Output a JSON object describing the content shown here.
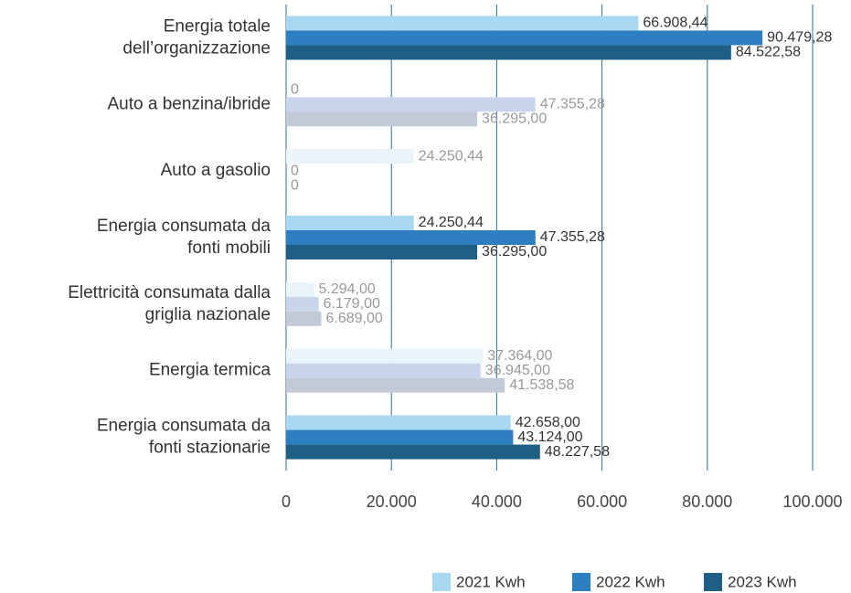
{
  "chart_data": {
    "type": "hbar",
    "categories": [
      "Energia totale\ndell’organizzazione",
      "Auto a benzina/ibride",
      "Auto a gasolio",
      "Energia consumata da\nfonti mobili",
      "Elettricità consumata dalla\ngriglia nazionale",
      "Energia termica",
      "Energia consumata da\nfonti stazionarie"
    ],
    "series": [
      {
        "name": "2021 Kwh",
        "color": "#a9d8f2",
        "colors": [
          "#a9d8f2",
          "#eaf4fb",
          "#eaf4fb",
          "#a9d8f2",
          "#eaf4fb",
          "#eaf4fb",
          "#a9d8f2"
        ],
        "values": [
          66908.44,
          0,
          24250.44,
          24250.44,
          5294,
          37364,
          42658
        ],
        "value_labels": [
          "66.908,44",
          "0",
          "24.250,44",
          "24.250,44",
          "5.294,00",
          "37.364,00",
          "42.658,00"
        ]
      },
      {
        "name": "2022 Kwh",
        "color": "#2e7fc1",
        "colors": [
          "#2e7fc1",
          "#c9d5ea",
          "#c9d5ea",
          "#2e7fc1",
          "#c9d5ea",
          "#c9d5ea",
          "#2e7fc1"
        ],
        "values": [
          90479.28,
          47355.28,
          0,
          47355.28,
          6179,
          36945,
          43124
        ],
        "value_labels": [
          "90.479,28",
          "47.355,28",
          "0",
          "47.355,28",
          "6.179,00",
          "36.945,00",
          "43.124,00"
        ]
      },
      {
        "name": "2023 Kwh",
        "color": "#1f5f85",
        "colors": [
          "#1f5f85",
          "#c3cad7",
          "#c3cad7",
          "#1f5f85",
          "#c3cad7",
          "#c3cad7",
          "#1f5f85"
        ],
        "values": [
          84522.58,
          36295,
          0,
          36295,
          6689,
          41538.58,
          48227.58
        ],
        "value_labels": [
          "84.522,58",
          "36.295,00",
          "0",
          "36.295,00",
          "6.689,00",
          "41.538,58",
          "48.227,58"
        ]
      }
    ],
    "label_colors": [
      "#333333",
      "#999999",
      "#999999",
      "#333333",
      "#999999",
      "#999999",
      "#333333"
    ],
    "xlim": [
      0,
      100000
    ],
    "xticks": [
      0,
      {
        "value": 20000,
        "label": "20.000"
      },
      {
        "value": 40000,
        "label": "40.000"
      },
      {
        "value": 60000,
        "label": "60.000"
      },
      {
        "value": 80000,
        "label": "80.000"
      },
      {
        "value": 100000,
        "label": "100.000"
      }
    ],
    "grid": true,
    "grid_color": "#2f6f8f",
    "legend": "bottom-right"
  }
}
